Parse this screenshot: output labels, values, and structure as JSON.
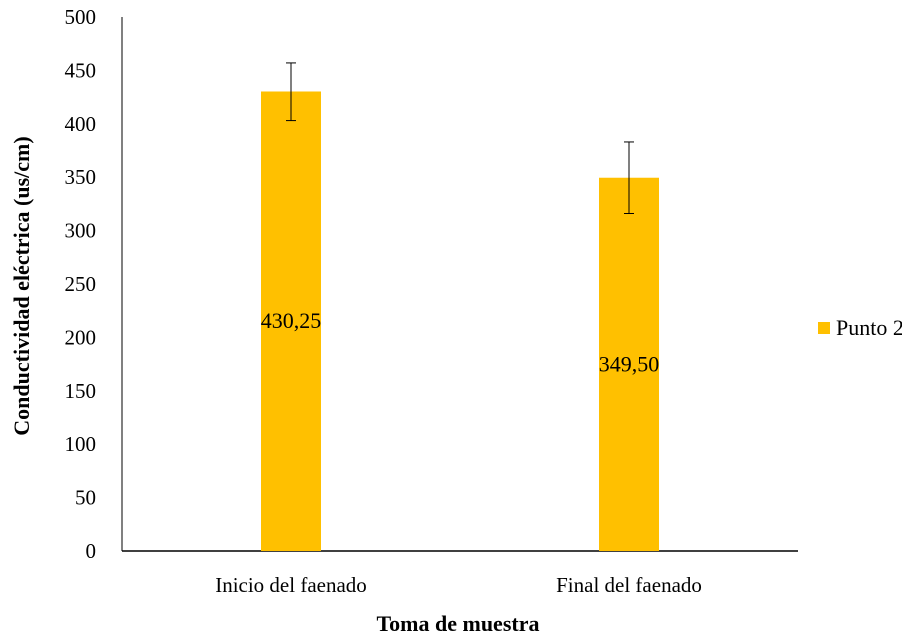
{
  "chart_data": {
    "type": "bar",
    "title": "",
    "xlabel": "Toma de muestra",
    "ylabel": "Conductividad eléctrica (us/cm)",
    "ylim": [
      0,
      500
    ],
    "yticks": [
      0,
      50,
      100,
      150,
      200,
      250,
      300,
      350,
      400,
      450,
      500
    ],
    "categories": [
      "Inicio del faenado",
      "Final del faenado"
    ],
    "series": [
      {
        "name": "Punto 2",
        "color": "#FFC000",
        "values": [
          430.25,
          349.5
        ],
        "value_labels": [
          "430,25",
          "349,50"
        ],
        "error_low": [
          403,
          316
        ],
        "error_high": [
          457,
          383
        ]
      }
    ],
    "grid": false,
    "legend_position": "right"
  }
}
